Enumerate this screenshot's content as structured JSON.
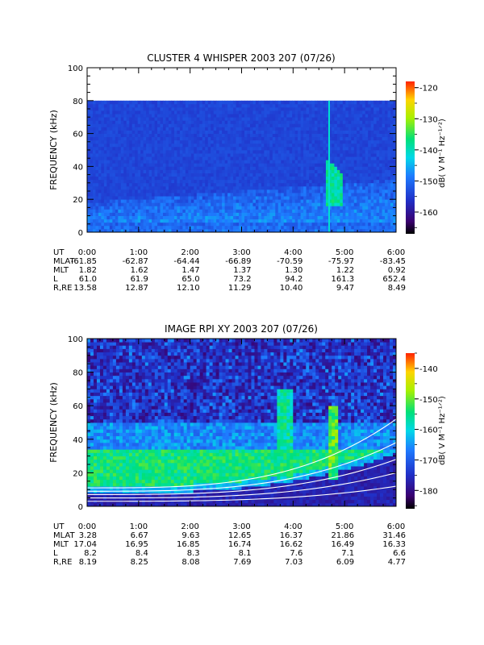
{
  "chart_data": [
    {
      "type": "heatmap",
      "title": "CLUSTER 4 WHISPER 2003 207 (07/26)",
      "ylabel": "FREQUENCY (kHz)",
      "y_ticks": [
        "0",
        "20",
        "40",
        "60",
        "80",
        "100"
      ],
      "ylim": [
        0,
        100
      ],
      "data_ceiling_khz": 80,
      "colorbar": {
        "label": "dB( V M⁻¹ Hz⁻¹ᐟ²)",
        "ticks": [
          "-120",
          "-130",
          "-140",
          "-150",
          "-160"
        ],
        "range": [
          -167,
          -118
        ]
      },
      "features": [
        {
          "label": "emission band",
          "time_range_h": [
            4.65,
            4.95
          ],
          "freq_khz": [
            15,
            45
          ],
          "level_db": -140
        },
        {
          "label": "vertical spike",
          "time_h": 4.7,
          "freq_khz": [
            0,
            80
          ]
        }
      ],
      "ephemeris": {
        "rows": [
          {
            "label": "UT",
            "values": [
              "0:00",
              "1:00",
              "2:00",
              "3:00",
              "4:00",
              "5:00",
              "6:00"
            ]
          },
          {
            "label": "MLAT",
            "values": [
              "-61.85",
              "-62.87",
              "-64.44",
              "-66.89",
              "-70.59",
              "-75.97",
              "-83.45"
            ]
          },
          {
            "label": "MLT",
            "values": [
              "1.82",
              "1.62",
              "1.47",
              "1.37",
              "1.30",
              "1.22",
              "0.92"
            ]
          },
          {
            "label": "L",
            "values": [
              "61.0",
              "61.9",
              "65.0",
              "73.2",
              "94.2",
              "161.3",
              "652.4"
            ]
          },
          {
            "label": "R,RE",
            "values": [
              "13.58",
              "12.87",
              "12.10",
              "11.29",
              "10.40",
              "9.47",
              "8.49"
            ]
          }
        ]
      }
    },
    {
      "type": "heatmap",
      "title": "IMAGE RPI XY 2003 207 (07/26)",
      "ylabel": "FREQUENCY (kHz)",
      "y_ticks": [
        "0",
        "20",
        "40",
        "60",
        "80",
        "100"
      ],
      "ylim": [
        0,
        100
      ],
      "colorbar": {
        "label": "dB( V M⁻¹ Hz⁻¹ᐟ²)",
        "ticks": [
          "-140",
          "-150",
          "-160",
          "-170",
          "-180"
        ],
        "range": [
          -186,
          -135
        ]
      },
      "overlay_curves": [
        {
          "label": "white curve 1",
          "start_khz": 3,
          "end_khz": 12
        },
        {
          "label": "white curve 2",
          "start_khz": 5,
          "end_khz": 20
        },
        {
          "label": "white curve 3",
          "start_khz": 7,
          "end_khz": 28
        },
        {
          "label": "white curve 4",
          "start_khz": 9,
          "end_khz": 38
        },
        {
          "label": "white curve 5",
          "start_khz": 11,
          "end_khz": 52
        }
      ],
      "ephemeris": {
        "rows": [
          {
            "label": "UT",
            "values": [
              "0:00",
              "1:00",
              "2:00",
              "3:00",
              "4:00",
              "5:00",
              "6:00"
            ]
          },
          {
            "label": "MLAT",
            "values": [
              "3.28",
              "6.67",
              "9.63",
              "12.65",
              "16.37",
              "21.86",
              "31.46"
            ]
          },
          {
            "label": "MLT",
            "values": [
              "17.04",
              "16.95",
              "16.85",
              "16.74",
              "16.62",
              "16.49",
              "16.33"
            ]
          },
          {
            "label": "L",
            "values": [
              "8.2",
              "8.4",
              "8.3",
              "8.1",
              "7.6",
              "7.1",
              "6.6"
            ]
          },
          {
            "label": "R,RE",
            "values": [
              "8.19",
              "8.25",
              "8.08",
              "7.69",
              "7.03",
              "6.09",
              "4.77"
            ]
          }
        ]
      }
    }
  ]
}
